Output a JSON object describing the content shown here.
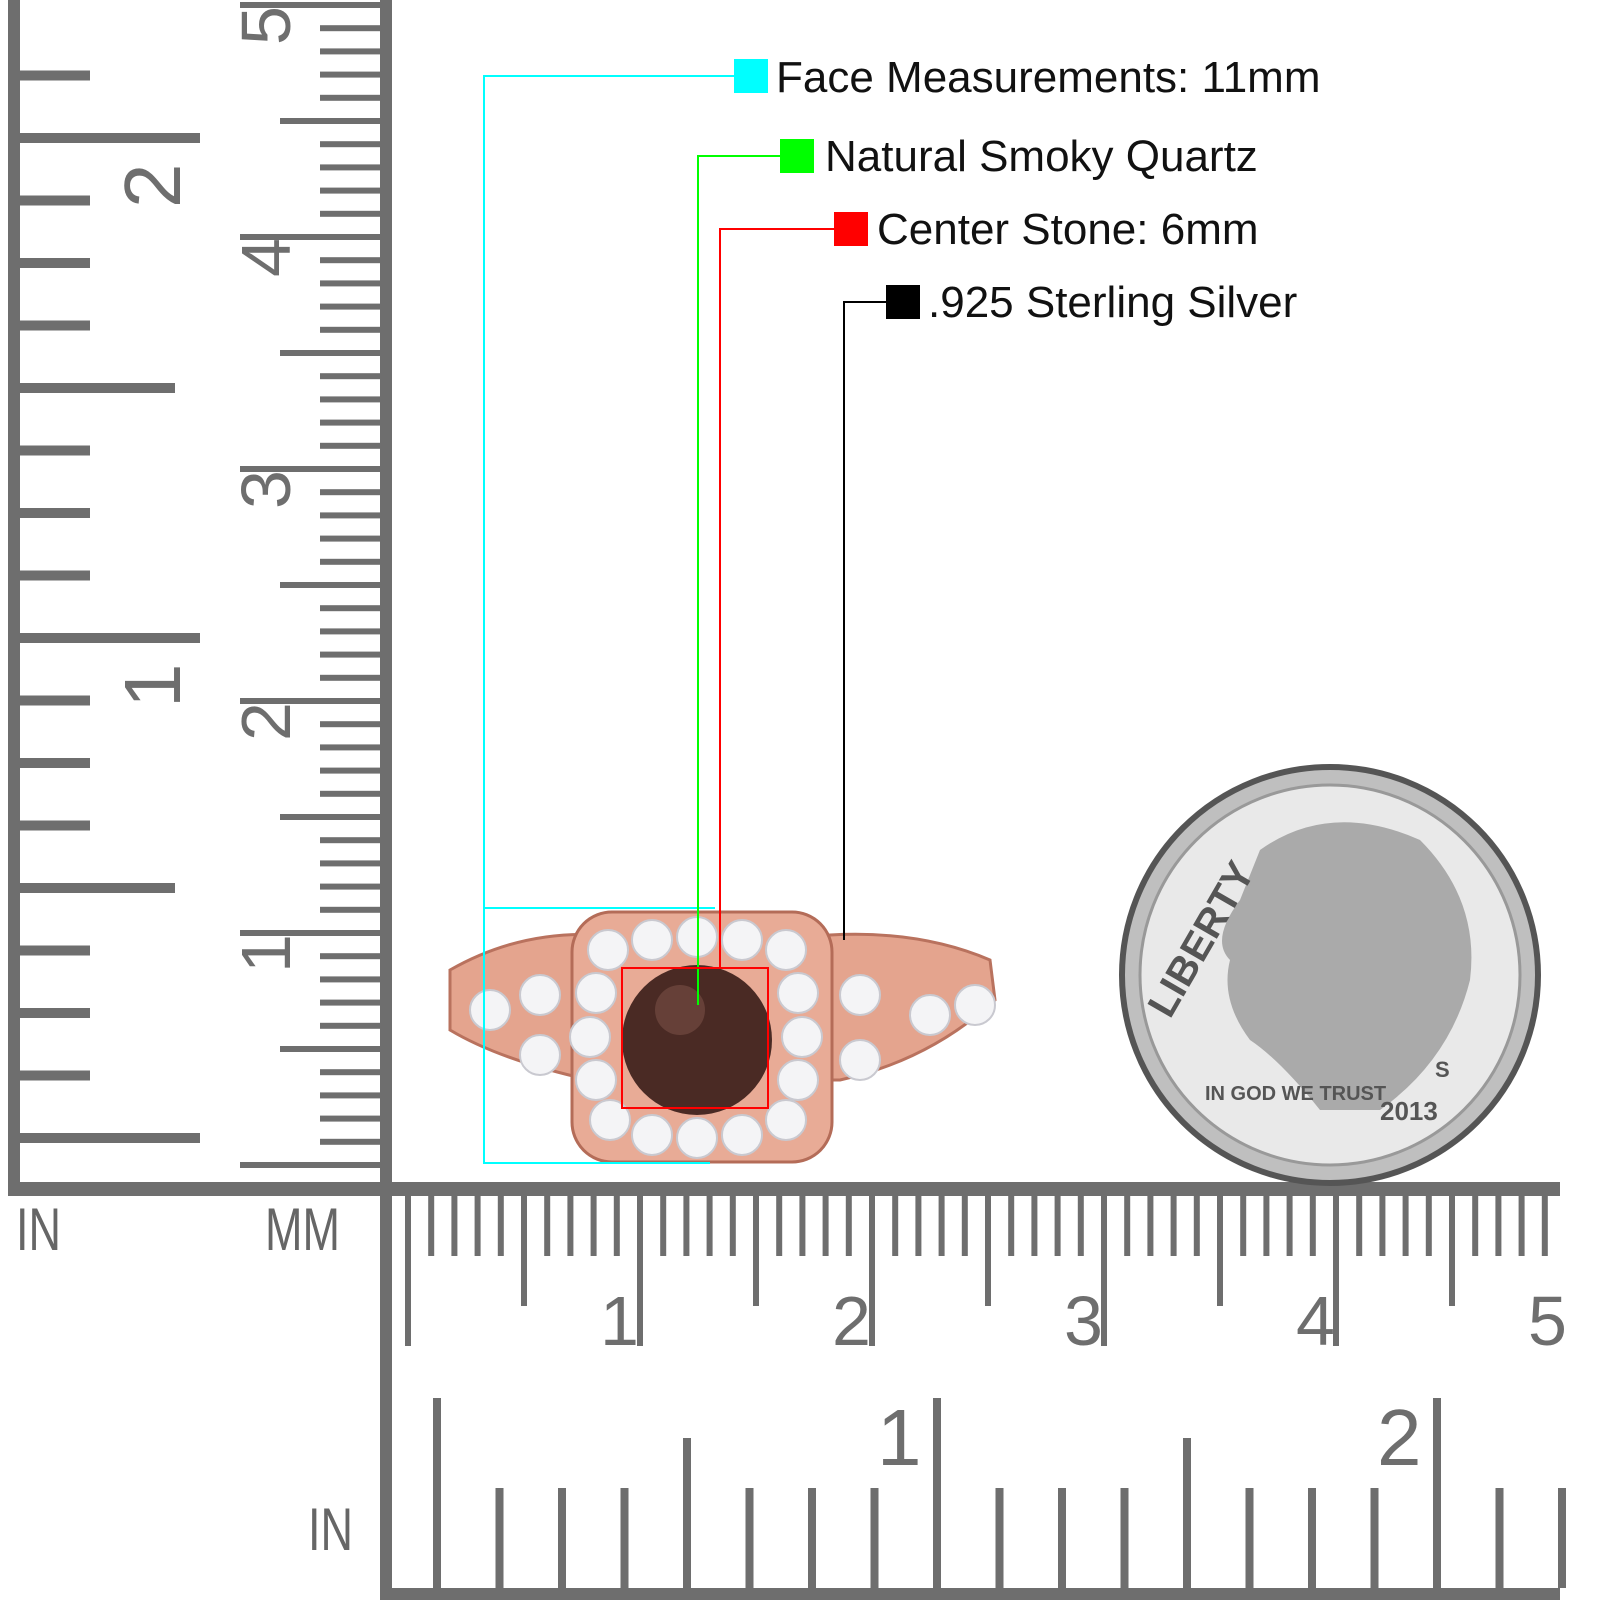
{
  "legend": [
    {
      "label": "Face Measurements: 11mm",
      "color": "#00ffff"
    },
    {
      "label": "Natural Smoky Quartz",
      "color": "#00ff00"
    },
    {
      "label": "Center Stone: 6mm",
      "color": "#ff0000"
    },
    {
      "label": ".925 Sterling Silver",
      "color": "#000000"
    }
  ],
  "rulers": {
    "vertical_in_label": "IN",
    "vertical_mm_label": "MM",
    "horizontal_in_label": "IN",
    "mm_numbers": [
      "1",
      "2",
      "3",
      "4",
      "5"
    ],
    "in_numbers": [
      "1",
      "2"
    ]
  },
  "coin": {
    "legend_text": "LIBERTY",
    "motto": "IN GOD WE TRUST",
    "mint": "S",
    "year": "2013"
  },
  "colors": {
    "ruler": "#6e6e6e",
    "ring": "#e0a08c",
    "stone": "#4a2a24"
  }
}
